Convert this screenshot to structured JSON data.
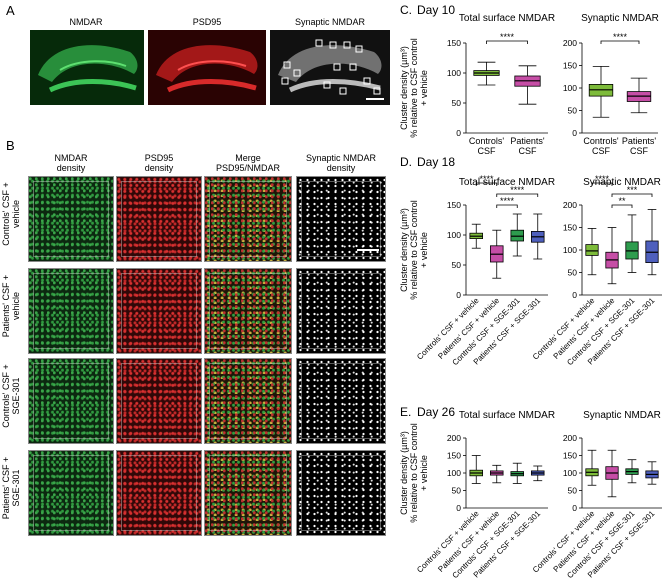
{
  "panels": {
    "A": {
      "letter": "A",
      "tiles": [
        "NMDAR",
        "PSD95",
        "Synaptic NMDAR"
      ]
    },
    "B": {
      "letter": "B",
      "columns": [
        "NMDAR\ndensity",
        "PSD95\ndensity",
        "Merge\nPSD95/NMDAR",
        "Synaptic NMDAR\ndensity"
      ],
      "rows": [
        "Controls' CSF +\nvehicle",
        "Patients' CSF +\nvehicle",
        "Controls' CSF +\nSGE-301",
        "Patients' CSF +\nSGE-301"
      ]
    },
    "C": {
      "letter": "C.",
      "title": "Day 10"
    },
    "D": {
      "letter": "D.",
      "title": "Day 18"
    },
    "E": {
      "letter": "E.",
      "title": "Day 26"
    }
  },
  "shared": {
    "ylabel": "Cluster density (µm³)\n% relative to CSF control\n+ vehicle",
    "left_title": "Total surface NMDAR",
    "right_title": "Synaptic NMDAR"
  },
  "chart_data": [
    {
      "type": "box",
      "panel": "C",
      "title": "Total surface NMDAR",
      "categories": [
        "Controls'\nCSF",
        "Patients'\nCSF"
      ],
      "ylim": [
        0,
        150
      ],
      "yticks": [
        0,
        50,
        100,
        150
      ],
      "boxes": [
        {
          "min": 80,
          "q1": 96,
          "median": 100,
          "q3": 104,
          "max": 118,
          "color": "#7dbb3a"
        },
        {
          "min": 48,
          "q1": 78,
          "median": 87,
          "q3": 95,
          "max": 112,
          "color": "#c64ea6"
        }
      ],
      "sig": [
        {
          "from": 0,
          "to": 1,
          "label": "****"
        }
      ]
    },
    {
      "type": "box",
      "panel": "C",
      "title": "Synaptic NMDAR",
      "categories": [
        "Controls'\nCSF",
        "Patients'\nCSF"
      ],
      "ylim": [
        0,
        200
      ],
      "yticks": [
        0,
        50,
        100,
        150,
        200
      ],
      "boxes": [
        {
          "min": 35,
          "q1": 82,
          "median": 96,
          "q3": 108,
          "max": 148,
          "color": "#7dbb3a"
        },
        {
          "min": 45,
          "q1": 70,
          "median": 82,
          "q3": 92,
          "max": 122,
          "color": "#c64ea6"
        }
      ],
      "sig": [
        {
          "from": 0,
          "to": 1,
          "label": "****"
        }
      ]
    },
    {
      "type": "box",
      "panel": "D",
      "title": "Total surface NMDAR",
      "categories": [
        "Controls' CSF + vehicle",
        "Patients' CSF + vehicle",
        "Controls' CSF + SGE-301",
        "Patients' CSF + SGE-301"
      ],
      "ylim": [
        0,
        150
      ],
      "yticks": [
        0,
        50,
        100,
        150
      ],
      "boxes": [
        {
          "min": 78,
          "q1": 94,
          "median": 98,
          "q3": 103,
          "max": 118,
          "color": "#7dbb3a"
        },
        {
          "min": 28,
          "q1": 55,
          "median": 68,
          "q3": 82,
          "max": 108,
          "color": "#c64ea6"
        },
        {
          "min": 65,
          "q1": 90,
          "median": 98,
          "q3": 108,
          "max": 135,
          "color": "#2e9c4e"
        },
        {
          "min": 60,
          "q1": 88,
          "median": 97,
          "q3": 106,
          "max": 135,
          "color": "#4e5fbd"
        }
      ],
      "sig": [
        {
          "from": 0,
          "to": 1,
          "label": "****",
          "level": 3
        },
        {
          "from": 1,
          "to": 3,
          "label": "****",
          "level": 2
        },
        {
          "from": 1,
          "to": 2,
          "label": "****",
          "level": 1
        }
      ]
    },
    {
      "type": "box",
      "panel": "D",
      "title": "Synaptic NMDAR",
      "categories": [
        "Controls' CSF + vehicle",
        "Patients' CSF + vehicle",
        "Controls' CSF + SGE-301",
        "Patients' CSF + SGE-301"
      ],
      "ylim": [
        0,
        200
      ],
      "yticks": [
        0,
        50,
        100,
        150,
        200
      ],
      "boxes": [
        {
          "min": 45,
          "q1": 88,
          "median": 98,
          "q3": 112,
          "max": 148,
          "color": "#7dbb3a"
        },
        {
          "min": 25,
          "q1": 60,
          "median": 78,
          "q3": 95,
          "max": 150,
          "color": "#c64ea6"
        },
        {
          "min": 50,
          "q1": 80,
          "median": 98,
          "q3": 118,
          "max": 178,
          "color": "#2e9c4e"
        },
        {
          "min": 45,
          "q1": 72,
          "median": 95,
          "q3": 120,
          "max": 190,
          "color": "#4e5fbd"
        }
      ],
      "sig": [
        {
          "from": 0,
          "to": 1,
          "label": "****",
          "level": 3
        },
        {
          "from": 1,
          "to": 3,
          "label": "***",
          "level": 2
        },
        {
          "from": 1,
          "to": 2,
          "label": "**",
          "level": 1
        }
      ]
    },
    {
      "type": "box",
      "panel": "E",
      "title": "Total surface NMDAR",
      "categories": [
        "Controls' CSF + vehicle",
        "Patients' CSF + vehicle",
        "Controls' CSF + SGE-301",
        "Patients' CSF + SGE-301"
      ],
      "ylim": [
        0,
        200
      ],
      "yticks": [
        0,
        50,
        100,
        150,
        200
      ],
      "boxes": [
        {
          "min": 70,
          "q1": 92,
          "median": 100,
          "q3": 108,
          "max": 150,
          "color": "#7dbb3a"
        },
        {
          "min": 72,
          "q1": 94,
          "median": 100,
          "q3": 106,
          "max": 122,
          "color": "#c64ea6"
        },
        {
          "min": 70,
          "q1": 92,
          "median": 98,
          "q3": 104,
          "max": 128,
          "color": "#2e9c4e"
        },
        {
          "min": 78,
          "q1": 94,
          "median": 100,
          "q3": 106,
          "max": 120,
          "color": "#4e5fbd"
        }
      ],
      "sig": []
    },
    {
      "type": "box",
      "panel": "E",
      "title": "Synaptic NMDAR",
      "categories": [
        "Controls' CSF + vehicle",
        "Patients' CSF + vehicle",
        "Controls' CSF + SGE-301",
        "Patients' CSF + SGE-301"
      ],
      "ylim": [
        0,
        200
      ],
      "yticks": [
        0,
        50,
        100,
        150,
        200
      ],
      "boxes": [
        {
          "min": 65,
          "q1": 92,
          "median": 102,
          "q3": 112,
          "max": 165,
          "color": "#7dbb3a"
        },
        {
          "min": 32,
          "q1": 82,
          "median": 100,
          "q3": 118,
          "max": 165,
          "color": "#c64ea6"
        },
        {
          "min": 72,
          "q1": 96,
          "median": 104,
          "q3": 112,
          "max": 138,
          "color": "#2e9c4e"
        },
        {
          "min": 68,
          "q1": 86,
          "median": 96,
          "q3": 106,
          "max": 132,
          "color": "#4e5fbd"
        }
      ],
      "sig": []
    }
  ]
}
